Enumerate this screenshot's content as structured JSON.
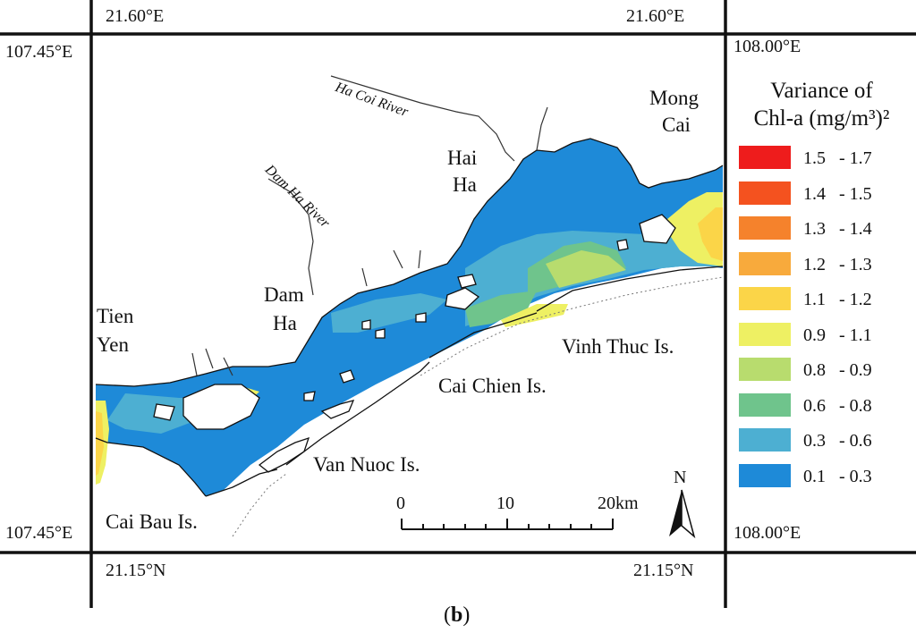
{
  "map": {
    "coords": {
      "top_left": "21.60°E",
      "top_right": "21.60°E",
      "left_top": "107.45°E",
      "left_bottom": "107.45°E",
      "right_top": "108.00°E",
      "right_bottom": "108.00°E",
      "bottom_left": "21.15°N",
      "bottom_right": "21.15°N"
    },
    "places": {
      "mong_cai_1": "Mong",
      "mong_cai_2": "Cai",
      "hai_ha_1": "Hai",
      "hai_ha_2": "Ha",
      "dam_ha_1": "Dam",
      "dam_ha_2": "Ha",
      "tien_yen_1": "Tien",
      "tien_yen_2": "Yen",
      "vinh_thuc": "Vinh Thuc Is.",
      "cai_chien": "Cai Chien Is.",
      "van_nuoc": "Van Nuoc Is.",
      "cai_bau": "Cai Bau Is."
    },
    "rivers": {
      "ha_coi": "Ha Coi River",
      "dam_ha": "Dam Ha River"
    },
    "north_label": "N",
    "scale": {
      "label_0": "0",
      "label_10": "10",
      "label_20": "20km"
    }
  },
  "legend": {
    "title_line1": "Variance of",
    "title_line2": "Chl-a (mg/m³)²",
    "items": [
      {
        "range": "1.5   - 1.7",
        "color": "#ee1c1c"
      },
      {
        "range": "1.4   - 1.5",
        "color": "#f4521f"
      },
      {
        "range": "1.3   - 1.4",
        "color": "#f5822c"
      },
      {
        "range": "1.2   - 1.3",
        "color": "#f8aa3c"
      },
      {
        "range": "1.1   - 1.2",
        "color": "#fbd548"
      },
      {
        "range": "0.9   - 1.1",
        "color": "#eef063"
      },
      {
        "range": "0.8   - 0.9",
        "color": "#b8dc6e"
      },
      {
        "range": "0.6   - 0.8",
        "color": "#6fc48c"
      },
      {
        "range": "0.3   - 0.6",
        "color": "#4dafd2"
      },
      {
        "range": "0.1   - 0.3",
        "color": "#1e8ad8"
      }
    ]
  },
  "caption": {
    "open": "(",
    "letter": "b",
    "close": ")"
  }
}
